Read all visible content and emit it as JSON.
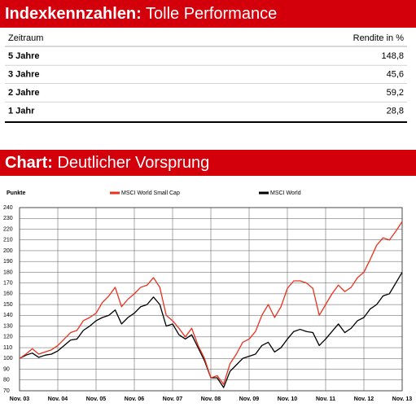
{
  "table": {
    "title_prefix": "Indexkennzahlen:",
    "title": "Tolle Performance",
    "columns": [
      "Zeitraum",
      "Rendite in %"
    ],
    "rows": [
      [
        "5 Jahre",
        "148,8"
      ],
      [
        "3 Jahre",
        "45,6"
      ],
      [
        "2 Jahre",
        "59,2"
      ],
      [
        "1 Jahr",
        "28,8"
      ]
    ]
  },
  "chart_data": {
    "type": "line",
    "title_prefix": "Chart:",
    "title": "Deutlicher Vorsprung",
    "ylabel": "Punkte",
    "categories": [
      "Nov. 03",
      null,
      null,
      null,
      null,
      null,
      "Nov. 04",
      null,
      null,
      null,
      null,
      null,
      "Nov. 05",
      null,
      null,
      null,
      null,
      null,
      "Nov. 06",
      null,
      null,
      null,
      null,
      null,
      "Nov. 07",
      null,
      null,
      null,
      null,
      null,
      "Nov. 08",
      null,
      null,
      null,
      null,
      null,
      "Nov. 09",
      null,
      null,
      null,
      null,
      null,
      "Nov. 10",
      null,
      null,
      null,
      null,
      null,
      "Nov. 11",
      null,
      null,
      null,
      null,
      null,
      "Nov. 12",
      null,
      null,
      null,
      null,
      null,
      "Nov. 13"
    ],
    "series": [
      {
        "name": "MSCI World Small Cap",
        "color": "#e8321e",
        "values": [
          100,
          104,
          109,
          104,
          106,
          108,
          112,
          118,
          124,
          126,
          135,
          138,
          142,
          152,
          158,
          166,
          148,
          155,
          160,
          166,
          168,
          175,
          166,
          140,
          135,
          128,
          120,
          128,
          112,
          100,
          82,
          84,
          76,
          95,
          104,
          115,
          118,
          125,
          140,
          150,
          138,
          148,
          165,
          172,
          172,
          170,
          165,
          140,
          150,
          160,
          168,
          162,
          166,
          175,
          180,
          192,
          205,
          212,
          210,
          218,
          227
        ]
      },
      {
        "name": "MSCI World",
        "color": "#000000",
        "values": [
          100,
          103,
          105,
          101,
          103,
          104,
          107,
          112,
          117,
          118,
          126,
          130,
          135,
          138,
          140,
          145,
          132,
          138,
          142,
          148,
          150,
          157,
          150,
          130,
          132,
          122,
          118,
          122,
          110,
          98,
          82,
          82,
          73,
          88,
          94,
          100,
          102,
          104,
          112,
          115,
          106,
          110,
          118,
          125,
          127,
          125,
          124,
          112,
          118,
          125,
          132,
          124,
          128,
          135,
          138,
          146,
          150,
          158,
          160,
          170,
          180
        ]
      }
    ],
    "ylim": [
      70,
      240
    ],
    "yticks": [
      70,
      80,
      90,
      100,
      110,
      120,
      130,
      140,
      150,
      160,
      170,
      180,
      190,
      200,
      210,
      220,
      230,
      240
    ],
    "grid": true
  }
}
